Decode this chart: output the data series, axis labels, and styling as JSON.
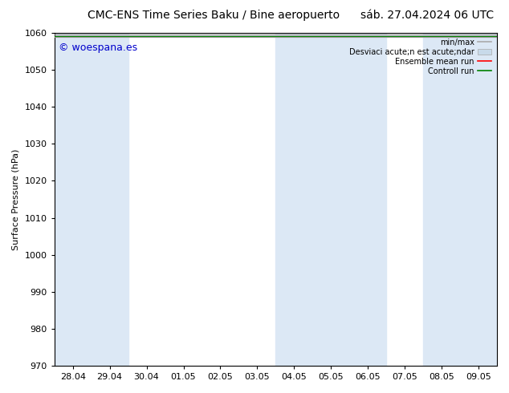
{
  "title": "CMC-ENS Time Series Baku / Bine aeropuerto",
  "title_right": "sáb. 27.04.2024 06 UTC",
  "ylabel": "Surface Pressure (hPa)",
  "ylim": [
    970,
    1060
  ],
  "yticks": [
    970,
    980,
    990,
    1000,
    1010,
    1020,
    1030,
    1040,
    1050,
    1060
  ],
  "xtick_labels": [
    "28.04",
    "29.04",
    "30.04",
    "01.05",
    "02.05",
    "03.05",
    "04.05",
    "05.05",
    "06.05",
    "07.05",
    "08.05",
    "09.05"
  ],
  "watermark": "© woespana.es",
  "background_color": "#ffffff",
  "plot_bg_color": "#ffffff",
  "shade_color": "#dce8f5",
  "shaded_indices": [
    0,
    1,
    6,
    7,
    8,
    10,
    11
  ],
  "legend_labels": [
    "min/max",
    "Desviaci acute;n est acute;ndar",
    "Ensemble mean run",
    "Controll run"
  ],
  "legend_colors": [
    "#aaaaaa",
    "#c8daea",
    "#ff0000",
    "#008000"
  ],
  "title_fontsize": 10,
  "label_fontsize": 8,
  "watermark_fontsize": 9,
  "watermark_color": "#0000cc"
}
